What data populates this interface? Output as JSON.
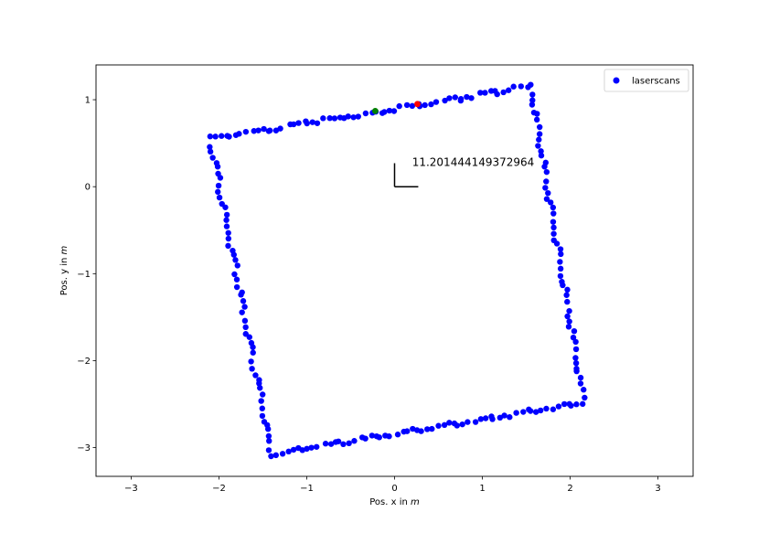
{
  "chart_data": {
    "type": "scatter",
    "xlabel": "Pos. x in m",
    "ylabel": "Pos. y in m",
    "xlim": [
      -3.4,
      3.4
    ],
    "ylim": [
      -3.33,
      1.4
    ],
    "x_ticks": [
      -3,
      -2,
      -1,
      0,
      1,
      2,
      3
    ],
    "y_ticks": [
      1,
      0,
      -1,
      -2,
      -3
    ],
    "x_tick_labels": [
      "−3",
      "−2",
      "−1",
      "0",
      "1",
      "2",
      "3"
    ],
    "y_tick_labels": [
      "1",
      "0",
      "−1",
      "−2",
      "−3"
    ],
    "grid": false,
    "legend": {
      "placement": "top-right",
      "entries": [
        "laserscans"
      ]
    },
    "annotation": {
      "text": "11.201444149372964",
      "x": 0.2,
      "y": 0.24
    },
    "pose_marker": {
      "corner": [
        0,
        0
      ],
      "x_end": [
        0.27,
        0
      ],
      "y_end": [
        0,
        0.27
      ]
    },
    "series": [
      {
        "name": "laserscans",
        "color": "#0000ff",
        "corners": [
          [
            -2.1,
            0.55
          ],
          [
            1.55,
            1.15
          ],
          [
            2.15,
            -2.48
          ],
          [
            -1.4,
            -3.08
          ]
        ],
        "points_per_side": [
          62,
          54,
          60,
          54
        ]
      },
      {
        "color": "#008000",
        "points": [
          [
            -0.22,
            0.87
          ]
        ]
      },
      {
        "color": "#ff0000",
        "points": [
          [
            0.26,
            0.95
          ]
        ]
      }
    ]
  }
}
